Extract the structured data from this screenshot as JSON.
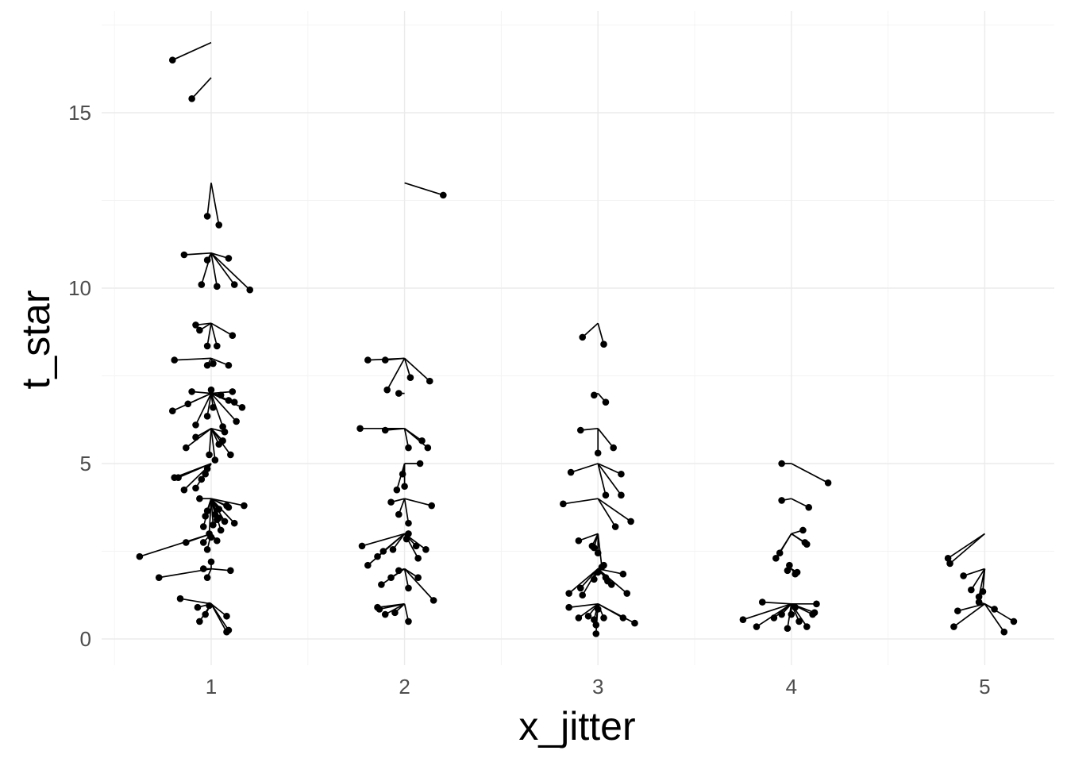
{
  "chart_data": {
    "type": "scatter",
    "title": "",
    "xlabel": "x_jitter",
    "ylabel": "t_star",
    "xlim": [
      0.5,
      5.35
    ],
    "ylim": [
      -0.7,
      17.5
    ],
    "x_ticks": [
      "1",
      "2",
      "3",
      "4",
      "5"
    ],
    "y_ticks": [
      "0",
      "5",
      "10",
      "15"
    ],
    "grid": true,
    "legend": "none",
    "point_color": "#000000",
    "segment_color": "#000000",
    "description_of_marks": "Each point (jittered x, t_star) is joined by a line segment to its un-jittered origin (integer x, integer t).",
    "groups": [
      {
        "x": 1,
        "t": 17,
        "points": [
          [
            0.8,
            16.5
          ]
        ]
      },
      {
        "x": 1,
        "t": 16,
        "points": [
          [
            0.9,
            15.4
          ]
        ]
      },
      {
        "x": 1,
        "t": 13,
        "points": [
          [
            0.98,
            12.05
          ],
          [
            1.04,
            11.8
          ]
        ]
      },
      {
        "x": 1,
        "t": 11,
        "points": [
          [
            0.86,
            10.95
          ],
          [
            0.98,
            10.8
          ],
          [
            1.09,
            10.85
          ],
          [
            0.95,
            10.1
          ],
          [
            1.03,
            10.05
          ],
          [
            1.12,
            10.1
          ],
          [
            1.2,
            9.95
          ]
        ]
      },
      {
        "x": 1,
        "t": 9,
        "points": [
          [
            0.92,
            8.95
          ],
          [
            0.94,
            8.8
          ],
          [
            0.98,
            8.35
          ],
          [
            1.03,
            8.35
          ],
          [
            1.11,
            8.65
          ]
        ]
      },
      {
        "x": 1,
        "t": 8,
        "points": [
          [
            0.81,
            7.95
          ],
          [
            0.98,
            7.8
          ],
          [
            1.01,
            7.85
          ],
          [
            1.09,
            7.8
          ]
        ]
      },
      {
        "x": 1,
        "t": 7,
        "points": [
          [
            0.8,
            6.5
          ],
          [
            0.88,
            6.7
          ],
          [
            0.9,
            7.05
          ],
          [
            0.92,
            6.1
          ],
          [
            0.98,
            6.35
          ],
          [
            1.0,
            7.1
          ],
          [
            1.01,
            6.6
          ],
          [
            1.05,
            6.95
          ],
          [
            1.06,
            6.05
          ],
          [
            1.09,
            6.8
          ],
          [
            1.11,
            7.05
          ],
          [
            1.12,
            6.75
          ],
          [
            1.13,
            6.2
          ],
          [
            1.16,
            6.6
          ]
        ]
      },
      {
        "x": 1,
        "t": 6,
        "points": [
          [
            0.87,
            5.45
          ],
          [
            0.92,
            5.75
          ],
          [
            0.99,
            5.25
          ],
          [
            1.02,
            5.1
          ],
          [
            1.04,
            5.55
          ],
          [
            1.06,
            5.65
          ],
          [
            1.07,
            5.9
          ],
          [
            1.1,
            5.25
          ]
        ]
      },
      {
        "x": 1,
        "t": 5,
        "points": [
          [
            0.81,
            4.6
          ],
          [
            0.83,
            4.6
          ],
          [
            0.86,
            4.25
          ],
          [
            0.92,
            4.3
          ],
          [
            0.95,
            4.55
          ],
          [
            0.97,
            4.7
          ],
          [
            0.98,
            4.85
          ]
        ]
      },
      {
        "x": 1,
        "t": 4,
        "points": [
          [
            0.94,
            4.0
          ],
          [
            0.96,
            3.2
          ],
          [
            0.97,
            3.5
          ],
          [
            0.98,
            3.65
          ],
          [
            0.99,
            3.0
          ],
          [
            1.01,
            3.25
          ],
          [
            1.02,
            3.55
          ],
          [
            1.03,
            3.4
          ],
          [
            1.04,
            3.7
          ],
          [
            1.04,
            3.45
          ],
          [
            1.05,
            3.1
          ],
          [
            1.07,
            3.35
          ],
          [
            1.08,
            3.8
          ],
          [
            1.09,
            3.75
          ],
          [
            1.12,
            3.3
          ],
          [
            1.17,
            3.8
          ]
        ]
      },
      {
        "x": 1,
        "t": 3,
        "points": [
          [
            0.63,
            2.35
          ],
          [
            0.87,
            2.75
          ],
          [
            0.96,
            2.75
          ],
          [
            0.98,
            2.55
          ],
          [
            1.0,
            2.9
          ],
          [
            1.03,
            2.8
          ]
        ]
      },
      {
        "x": 1,
        "t": 2,
        "points": [
          [
            0.73,
            1.75
          ],
          [
            0.96,
            2.0
          ],
          [
            0.98,
            1.75
          ],
          [
            1.0,
            2.2
          ],
          [
            1.1,
            1.95
          ]
        ]
      },
      {
        "x": 1,
        "t": 1,
        "points": [
          [
            0.84,
            1.15
          ],
          [
            0.93,
            0.9
          ],
          [
            0.94,
            0.5
          ],
          [
            0.97,
            0.7
          ],
          [
            0.99,
            0.95
          ],
          [
            1.08,
            0.65
          ],
          [
            1.08,
            0.2
          ],
          [
            1.09,
            0.25
          ]
        ]
      },
      {
        "x": 2,
        "t": 13,
        "points": [
          [
            2.2,
            12.65
          ]
        ]
      },
      {
        "x": 2,
        "t": 8,
        "points": [
          [
            1.81,
            7.95
          ],
          [
            1.9,
            7.95
          ],
          [
            1.91,
            7.1
          ],
          [
            2.03,
            7.45
          ],
          [
            2.13,
            7.35
          ]
        ]
      },
      {
        "x": 2,
        "t": 7,
        "points": [
          [
            1.97,
            7.0
          ]
        ]
      },
      {
        "x": 2,
        "t": 6,
        "points": [
          [
            1.77,
            6.0
          ],
          [
            1.9,
            5.95
          ],
          [
            2.02,
            5.45
          ],
          [
            2.09,
            5.65
          ],
          [
            2.12,
            5.45
          ]
        ]
      },
      {
        "x": 2,
        "t": 5,
        "points": [
          [
            1.96,
            4.25
          ],
          [
            1.99,
            4.7
          ],
          [
            2.0,
            4.35
          ],
          [
            2.08,
            5.0
          ]
        ]
      },
      {
        "x": 2,
        "t": 4,
        "points": [
          [
            1.93,
            3.9
          ],
          [
            1.97,
            3.55
          ],
          [
            2.02,
            3.3
          ],
          [
            2.14,
            3.8
          ]
        ]
      },
      {
        "x": 2,
        "t": 3,
        "points": [
          [
            1.78,
            2.65
          ],
          [
            1.81,
            2.1
          ],
          [
            1.86,
            2.35
          ],
          [
            1.89,
            2.5
          ],
          [
            1.94,
            2.55
          ],
          [
            2.01,
            2.85
          ],
          [
            2.02,
            3.0
          ],
          [
            2.06,
            2.65
          ],
          [
            2.07,
            2.3
          ],
          [
            2.11,
            2.55
          ]
        ]
      },
      {
        "x": 2,
        "t": 2,
        "points": [
          [
            1.88,
            1.55
          ],
          [
            1.93,
            1.75
          ],
          [
            1.97,
            1.95
          ],
          [
            2.02,
            1.45
          ],
          [
            2.07,
            1.75
          ],
          [
            2.15,
            1.1
          ]
        ]
      },
      {
        "x": 2,
        "t": 1,
        "points": [
          [
            1.86,
            0.9
          ],
          [
            1.87,
            0.85
          ],
          [
            1.9,
            0.7
          ],
          [
            1.95,
            0.75
          ],
          [
            2.02,
            0.5
          ]
        ]
      },
      {
        "x": 3,
        "t": 9,
        "points": [
          [
            2.92,
            8.6
          ],
          [
            3.03,
            8.4
          ]
        ]
      },
      {
        "x": 3,
        "t": 7,
        "points": [
          [
            2.98,
            6.95
          ],
          [
            3.04,
            6.75
          ]
        ]
      },
      {
        "x": 3,
        "t": 6,
        "points": [
          [
            2.91,
            5.95
          ],
          [
            3.0,
            5.3
          ],
          [
            3.08,
            5.45
          ]
        ]
      },
      {
        "x": 3,
        "t": 5,
        "points": [
          [
            2.86,
            4.75
          ],
          [
            3.04,
            4.1
          ],
          [
            3.12,
            4.7
          ],
          [
            3.12,
            4.1
          ]
        ]
      },
      {
        "x": 3,
        "t": 4,
        "points": [
          [
            2.82,
            3.85
          ],
          [
            3.09,
            3.2
          ],
          [
            3.17,
            3.35
          ]
        ]
      },
      {
        "x": 3,
        "t": 3,
        "points": [
          [
            2.9,
            2.8
          ],
          [
            2.97,
            2.65
          ],
          [
            2.98,
            2.6
          ],
          [
            3.0,
            2.45
          ],
          [
            3.02,
            2.05
          ]
        ]
      },
      {
        "x": 3,
        "t": 2,
        "points": [
          [
            2.85,
            1.3
          ],
          [
            2.91,
            1.45
          ],
          [
            2.92,
            1.25
          ],
          [
            2.98,
            1.7
          ],
          [
            3.0,
            1.9
          ],
          [
            3.03,
            2.1
          ],
          [
            3.04,
            1.75
          ],
          [
            3.05,
            1.65
          ],
          [
            3.07,
            1.55
          ],
          [
            3.13,
            1.85
          ],
          [
            3.15,
            1.3
          ]
        ]
      },
      {
        "x": 3,
        "t": 1,
        "points": [
          [
            2.85,
            0.9
          ],
          [
            2.9,
            0.6
          ],
          [
            2.95,
            0.65
          ],
          [
            2.98,
            0.55
          ],
          [
            2.99,
            0.4
          ],
          [
            2.99,
            0.15
          ],
          [
            3.0,
            0.85
          ],
          [
            3.03,
            0.6
          ],
          [
            3.13,
            0.6
          ],
          [
            3.19,
            0.45
          ]
        ]
      },
      {
        "x": 4,
        "t": 5,
        "points": [
          [
            3.95,
            5.0
          ],
          [
            4.19,
            4.45
          ]
        ]
      },
      {
        "x": 4,
        "t": 4,
        "points": [
          [
            3.95,
            3.95
          ],
          [
            4.09,
            3.75
          ]
        ]
      },
      {
        "x": 4,
        "t": 3,
        "points": [
          [
            3.92,
            2.3
          ],
          [
            3.94,
            2.45
          ],
          [
            4.06,
            3.1
          ],
          [
            4.07,
            2.75
          ],
          [
            4.08,
            2.7
          ]
        ]
      },
      {
        "x": 4,
        "t": 2,
        "points": [
          [
            3.98,
            1.95
          ],
          [
            3.99,
            2.1
          ],
          [
            4.02,
            1.85
          ],
          [
            4.03,
            1.9
          ]
        ]
      },
      {
        "x": 4,
        "t": 1,
        "points": [
          [
            3.75,
            0.55
          ],
          [
            3.82,
            0.35
          ],
          [
            3.85,
            1.05
          ],
          [
            3.91,
            0.6
          ],
          [
            3.95,
            0.7
          ],
          [
            3.98,
            0.3
          ],
          [
            4.0,
            0.7
          ],
          [
            4.02,
            0.9
          ],
          [
            4.04,
            0.5
          ],
          [
            4.08,
            0.35
          ],
          [
            4.11,
            0.7
          ],
          [
            4.12,
            0.75
          ],
          [
            4.13,
            1.0
          ]
        ]
      },
      {
        "x": 5,
        "t": 3,
        "points": [
          [
            4.81,
            2.3
          ],
          [
            4.82,
            2.15
          ]
        ]
      },
      {
        "x": 5,
        "t": 2,
        "points": [
          [
            4.89,
            1.8
          ],
          [
            4.93,
            1.4
          ],
          [
            4.97,
            1.2
          ],
          [
            4.99,
            1.35
          ]
        ]
      },
      {
        "x": 5,
        "t": 1,
        "points": [
          [
            4.84,
            0.35
          ],
          [
            4.86,
            0.8
          ],
          [
            4.97,
            1.05
          ],
          [
            5.05,
            0.85
          ],
          [
            5.1,
            0.2
          ],
          [
            5.15,
            0.5
          ]
        ]
      }
    ]
  }
}
